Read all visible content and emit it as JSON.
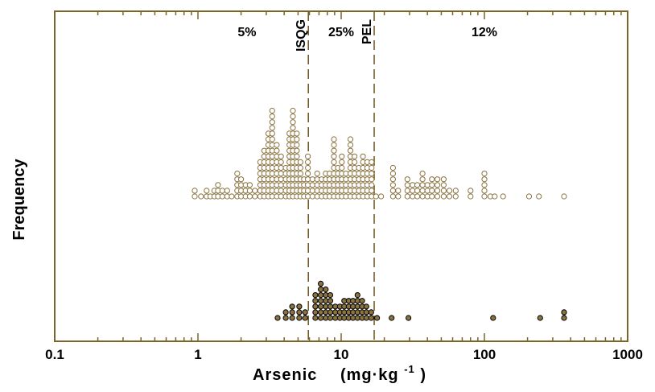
{
  "chart_data": {
    "type": "scatter",
    "subtype": "log-scale dot histogram (two stacked dot plots)",
    "xlabel": "Arsenic",
    "xlabel_unit": "(mg·kg",
    "xlabel_unit_exp": "-1",
    "xlabel_unit_close": ")",
    "ylabel": "Frequency",
    "xscale": "log",
    "xlim": [
      0.1,
      1000
    ],
    "xticks": [
      {
        "value": 0.1,
        "label": "0.1"
      },
      {
        "value": 1,
        "label": "1"
      },
      {
        "value": 10,
        "label": "10"
      },
      {
        "value": 100,
        "label": "100"
      },
      {
        "value": 1000,
        "label": "1000"
      }
    ],
    "guidelines": [
      {
        "name": "ISQG",
        "value": 5.9
      },
      {
        "name": "PEL",
        "value": 17
      }
    ],
    "region_labels": [
      {
        "text": "5%",
        "x": 2.2
      },
      {
        "text": "25%",
        "x": 10
      },
      {
        "text": "12%",
        "x": 100
      }
    ],
    "series": [
      {
        "style": "open",
        "color": "#8B7340",
        "fill": "#ffffff",
        "points": [
          {
            "x": 0.95,
            "count": 2
          },
          {
            "x": 1.05,
            "count": 1
          },
          {
            "x": 1.15,
            "count": 2
          },
          {
            "x": 1.22,
            "count": 1
          },
          {
            "x": 1.3,
            "count": 2
          },
          {
            "x": 1.38,
            "count": 3
          },
          {
            "x": 1.48,
            "count": 2
          },
          {
            "x": 1.6,
            "count": 2
          },
          {
            "x": 1.72,
            "count": 1
          },
          {
            "x": 1.88,
            "count": 5
          },
          {
            "x": 2.0,
            "count": 4
          },
          {
            "x": 2.15,
            "count": 3
          },
          {
            "x": 2.3,
            "count": 3
          },
          {
            "x": 2.5,
            "count": 2
          },
          {
            "x": 2.72,
            "count": 7
          },
          {
            "x": 2.9,
            "count": 9
          },
          {
            "x": 3.1,
            "count": 12
          },
          {
            "x": 3.3,
            "count": 16
          },
          {
            "x": 3.55,
            "count": 10
          },
          {
            "x": 3.8,
            "count": 8
          },
          {
            "x": 4.1,
            "count": 6
          },
          {
            "x": 4.35,
            "count": 12
          },
          {
            "x": 4.6,
            "count": 16
          },
          {
            "x": 4.9,
            "count": 12
          },
          {
            "x": 5.2,
            "count": 7
          },
          {
            "x": 5.5,
            "count": 4
          },
          {
            "x": 5.85,
            "count": 8
          },
          {
            "x": 6.3,
            "count": 4
          },
          {
            "x": 6.8,
            "count": 5
          },
          {
            "x": 7.3,
            "count": 4
          },
          {
            "x": 7.8,
            "count": 5
          },
          {
            "x": 8.3,
            "count": 5
          },
          {
            "x": 8.9,
            "count": 11
          },
          {
            "x": 9.5,
            "count": 6
          },
          {
            "x": 10.1,
            "count": 8
          },
          {
            "x": 10.8,
            "count": 5
          },
          {
            "x": 11.6,
            "count": 11
          },
          {
            "x": 12.4,
            "count": 8
          },
          {
            "x": 13.3,
            "count": 6
          },
          {
            "x": 14.2,
            "count": 8
          },
          {
            "x": 15.2,
            "count": 7
          },
          {
            "x": 16.3,
            "count": 7
          },
          {
            "x": 17.5,
            "count": 1
          },
          {
            "x": 19,
            "count": 1
          },
          {
            "x": 23,
            "count": 6
          },
          {
            "x": 25,
            "count": 2
          },
          {
            "x": 29,
            "count": 4
          },
          {
            "x": 31.5,
            "count": 3
          },
          {
            "x": 34,
            "count": 3
          },
          {
            "x": 37,
            "count": 5
          },
          {
            "x": 40,
            "count": 3
          },
          {
            "x": 43,
            "count": 4
          },
          {
            "x": 47,
            "count": 4
          },
          {
            "x": 52,
            "count": 4
          },
          {
            "x": 57,
            "count": 2
          },
          {
            "x": 63,
            "count": 2
          },
          {
            "x": 80,
            "count": 2
          },
          {
            "x": 100,
            "count": 5
          },
          {
            "x": 110,
            "count": 1
          },
          {
            "x": 118,
            "count": 1
          },
          {
            "x": 135,
            "count": 1
          },
          {
            "x": 205,
            "count": 1
          },
          {
            "x": 240,
            "count": 1
          },
          {
            "x": 360,
            "count": 1
          }
        ]
      },
      {
        "style": "filled",
        "color": "#000000",
        "fill": "#8B7340",
        "points": [
          {
            "x": 3.6,
            "count": 1
          },
          {
            "x": 4.1,
            "count": 2
          },
          {
            "x": 4.55,
            "count": 3
          },
          {
            "x": 5.1,
            "count": 3
          },
          {
            "x": 5.6,
            "count": 2
          },
          {
            "x": 6.6,
            "count": 5
          },
          {
            "x": 7.2,
            "count": 7
          },
          {
            "x": 7.8,
            "count": 6
          },
          {
            "x": 8.4,
            "count": 5
          },
          {
            "x": 9.1,
            "count": 3
          },
          {
            "x": 9.8,
            "count": 3
          },
          {
            "x": 10.5,
            "count": 4
          },
          {
            "x": 11.3,
            "count": 4
          },
          {
            "x": 12.1,
            "count": 4
          },
          {
            "x": 13,
            "count": 5
          },
          {
            "x": 14,
            "count": 4
          },
          {
            "x": 15,
            "count": 3
          },
          {
            "x": 16.2,
            "count": 2
          },
          {
            "x": 17.8,
            "count": 1
          },
          {
            "x": 22.5,
            "count": 1
          },
          {
            "x": 29.5,
            "count": 1
          },
          {
            "x": 115,
            "count": 1
          },
          {
            "x": 245,
            "count": 1
          },
          {
            "x": 360,
            "count": 2
          }
        ]
      }
    ]
  }
}
